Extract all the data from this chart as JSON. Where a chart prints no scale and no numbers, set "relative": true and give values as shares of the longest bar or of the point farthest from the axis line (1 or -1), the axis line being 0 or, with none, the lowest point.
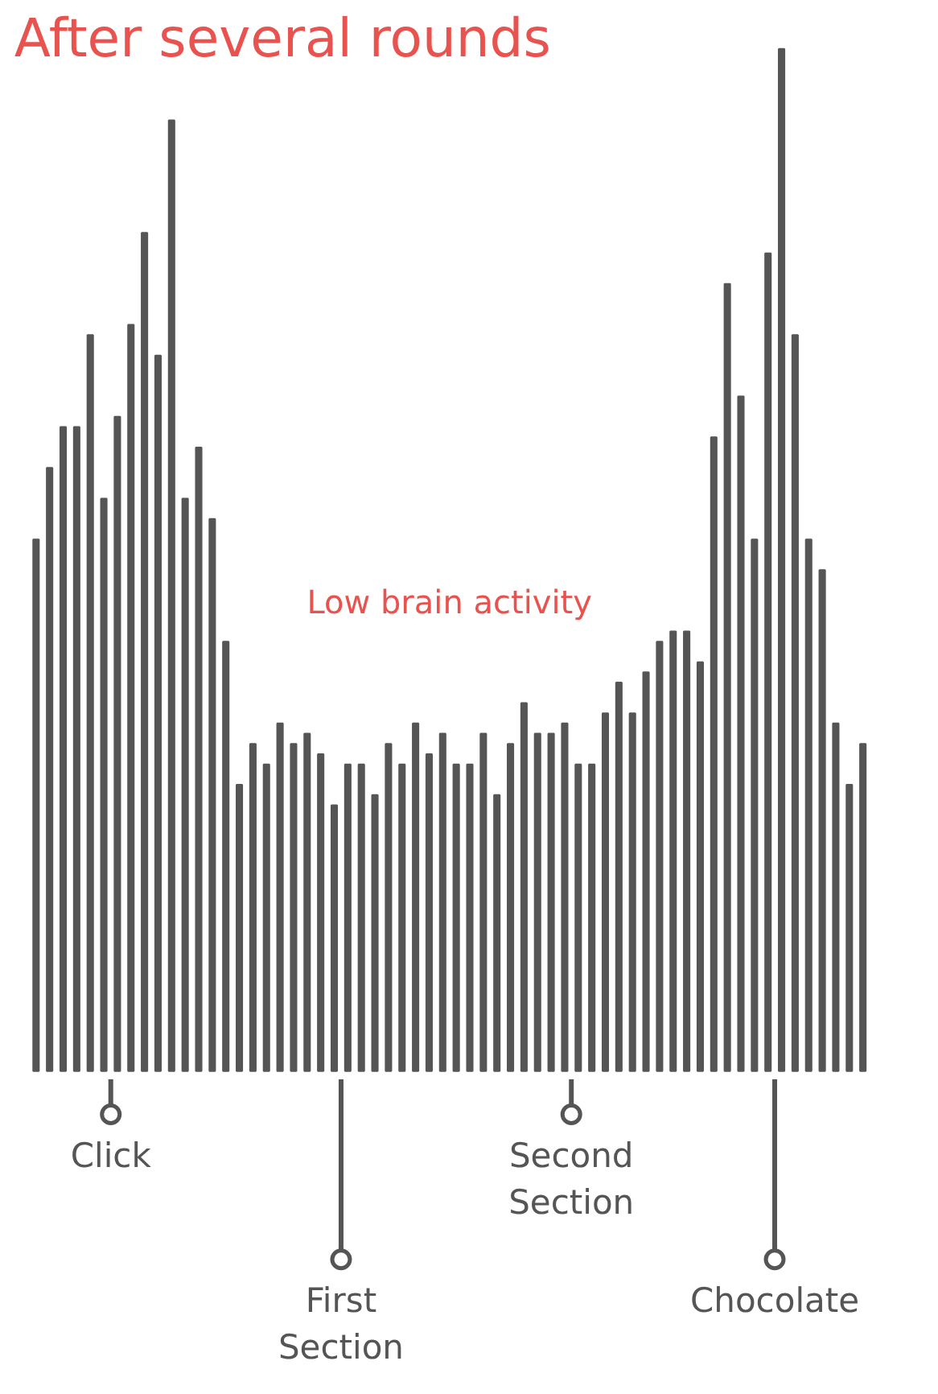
{
  "chart_data": {
    "type": "bar",
    "title": "After several rounds",
    "relative": true,
    "color": "#555555",
    "categories": [
      null,
      null,
      null,
      null,
      null,
      null,
      null,
      null,
      null,
      null,
      null,
      null,
      null,
      null,
      null,
      null,
      null,
      null,
      null,
      null,
      null,
      null,
      null,
      null,
      null,
      null,
      null,
      null,
      null,
      null,
      null,
      null,
      null,
      null,
      null,
      null,
      null,
      null,
      null,
      null,
      null,
      null,
      null,
      null,
      null,
      null,
      null,
      null,
      null,
      null,
      null,
      null,
      null,
      null,
      null,
      null,
      null,
      null,
      null,
      null,
      null,
      null
    ],
    "values": [
      0.52,
      0.59,
      0.63,
      0.63,
      0.72,
      0.56,
      0.64,
      0.73,
      0.82,
      0.7,
      0.93,
      0.56,
      0.61,
      0.54,
      0.42,
      0.28,
      0.32,
      0.3,
      0.34,
      0.32,
      0.33,
      0.31,
      0.26,
      0.3,
      0.3,
      0.27,
      0.32,
      0.3,
      0.34,
      0.31,
      0.33,
      0.3,
      0.3,
      0.33,
      0.27,
      0.32,
      0.36,
      0.33,
      0.33,
      0.34,
      0.3,
      0.3,
      0.35,
      0.38,
      0.35,
      0.39,
      0.42,
      0.43,
      0.43,
      0.4,
      0.62,
      0.77,
      0.66,
      0.52,
      0.8,
      1,
      0.72,
      0.52,
      0.49,
      0.34,
      0.28,
      0.32
    ],
    "annotations": [
      "Low brain activity",
      "Click",
      "First Section",
      "Second Section",
      "Chocolate"
    ]
  }
}
